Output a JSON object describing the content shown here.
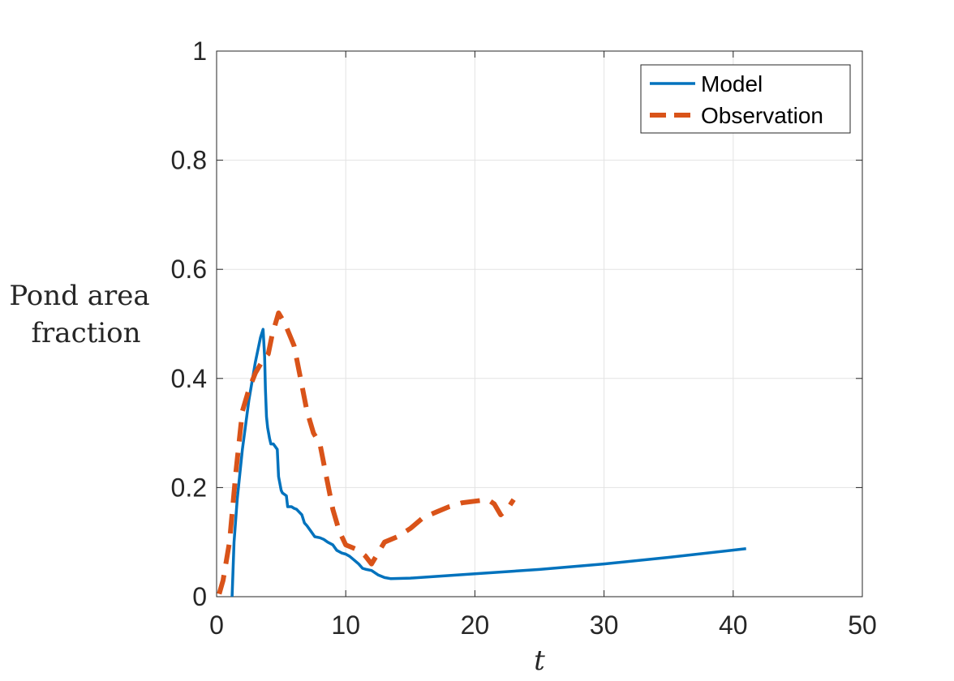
{
  "chart_data": {
    "type": "line",
    "title": "",
    "xlabel": "t",
    "ylabel": [
      "Pond area",
      "fraction"
    ],
    "xlim": [
      0,
      50
    ],
    "ylim": [
      0,
      1
    ],
    "xticks": [
      0,
      10,
      20,
      30,
      40,
      50
    ],
    "yticks": [
      0,
      0.2,
      0.4,
      0.6,
      0.8,
      1
    ],
    "xtick_labels": [
      "0",
      "10",
      "20",
      "30",
      "40",
      "50"
    ],
    "ytick_labels": [
      "0",
      "0.2",
      "0.4",
      "0.6",
      "0.8",
      "1"
    ],
    "grid": true,
    "legend_position": "top-right",
    "series": [
      {
        "name": "Model",
        "color": "#0072BD",
        "style": "solid",
        "x": [
          1.2,
          1.35,
          1.6,
          2.0,
          2.5,
          3.0,
          3.4,
          3.6,
          3.72,
          3.78,
          3.86,
          3.95,
          4.1,
          4.2,
          4.4,
          4.7,
          4.8,
          5.0,
          5.1,
          5.4,
          5.5,
          5.8,
          6.0,
          6.2,
          6.6,
          6.8,
          7.0,
          7.3,
          7.6,
          8.0,
          8.3,
          8.6,
          9.0,
          9.3,
          9.7,
          10.0,
          10.3,
          10.6,
          11.0,
          11.3,
          11.6,
          12.0,
          12.5,
          13.0,
          13.5,
          15.0,
          20.0,
          25.0,
          30.0,
          35.0,
          41.0
        ],
        "y": [
          0.0,
          0.1,
          0.18,
          0.27,
          0.36,
          0.43,
          0.475,
          0.49,
          0.44,
          0.38,
          0.33,
          0.31,
          0.29,
          0.28,
          0.28,
          0.27,
          0.22,
          0.195,
          0.19,
          0.185,
          0.165,
          0.165,
          0.162,
          0.16,
          0.15,
          0.135,
          0.13,
          0.12,
          0.11,
          0.108,
          0.105,
          0.1,
          0.095,
          0.085,
          0.08,
          0.078,
          0.074,
          0.068,
          0.06,
          0.052,
          0.05,
          0.048,
          0.04,
          0.035,
          0.033,
          0.034,
          0.042,
          0.05,
          0.06,
          0.072,
          0.088
        ]
      },
      {
        "name": "Observation",
        "color": "#D95319",
        "style": "dashed",
        "x": [
          0.2,
          0.5,
          1.0,
          1.5,
          2.0,
          2.5,
          3.0,
          3.5,
          4.0,
          4.3,
          4.8,
          5.3,
          6.0,
          6.5,
          7.0,
          7.5,
          8.0,
          8.5,
          9.0,
          9.5,
          10.0,
          10.5,
          11.0,
          11.5,
          12.0,
          12.5,
          13.0,
          14.0,
          15.0,
          16.0,
          17.0,
          18.0,
          19.0,
          20.0,
          21.0,
          21.5,
          22.0,
          22.5,
          23.0
        ],
        "y": [
          0.005,
          0.03,
          0.1,
          0.23,
          0.34,
          0.38,
          0.41,
          0.43,
          0.445,
          0.48,
          0.52,
          0.5,
          0.46,
          0.4,
          0.34,
          0.3,
          0.28,
          0.22,
          0.16,
          0.12,
          0.095,
          0.09,
          0.085,
          0.075,
          0.06,
          0.08,
          0.1,
          0.11,
          0.125,
          0.145,
          0.155,
          0.165,
          0.172,
          0.175,
          0.178,
          0.17,
          0.15,
          0.16,
          0.178
        ]
      }
    ]
  }
}
